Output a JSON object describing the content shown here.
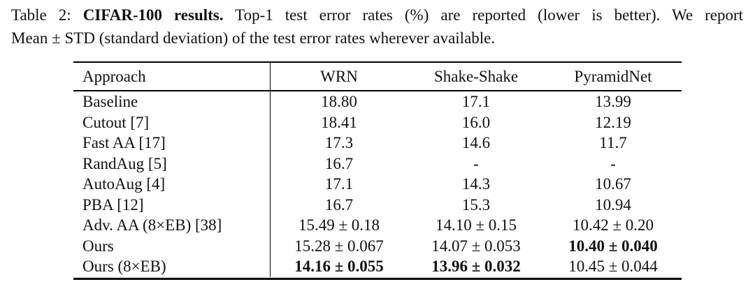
{
  "caption": {
    "line1_prefix": "Table 2:",
    "line1_bold": "CIFAR-100 results.",
    "line1_rest": "Top-1 test error rates (%) are reported (lower is better). We report",
    "line2": "Mean ± STD (standard deviation) of the test error rates wherever available."
  },
  "table": {
    "columns": [
      "Approach",
      "WRN",
      "Shake-Shake",
      "PyramidNet"
    ],
    "rows": [
      {
        "approach": "Baseline",
        "wrn": "18.80",
        "shake": "17.1",
        "pyramid": "13.99"
      },
      {
        "approach": "Cutout [7]",
        "wrn": "18.41",
        "shake": "16.0",
        "pyramid": "12.19"
      },
      {
        "approach": "Fast AA [17]",
        "wrn": "17.3",
        "shake": "14.6",
        "pyramid": "11.7"
      },
      {
        "approach": "RandAug [5]",
        "wrn": "16.7",
        "shake": "-",
        "pyramid": "-"
      },
      {
        "approach": "AutoAug [4]",
        "wrn": "17.1",
        "shake": "14.3",
        "pyramid": "10.67"
      },
      {
        "approach": "PBA [12]",
        "wrn": "16.7",
        "shake": "15.3",
        "pyramid": "10.94"
      },
      {
        "approach": "Adv. AA (8×EB) [38]",
        "wrn": "15.49 ± 0.18",
        "shake": "14.10 ± 0.15",
        "pyramid": "10.42 ± 0.20"
      },
      {
        "approach": "Ours",
        "wrn": "15.28 ± 0.067",
        "shake": "14.07 ± 0.053",
        "pyramid": "10.40 ± 0.040"
      },
      {
        "approach": "Ours (8×EB)",
        "wrn": "14.16 ± 0.055",
        "shake": "13.96 ± 0.032",
        "pyramid": "10.45 ± 0.044"
      }
    ],
    "text_color": "#111111",
    "rule_color": "#000000"
  }
}
